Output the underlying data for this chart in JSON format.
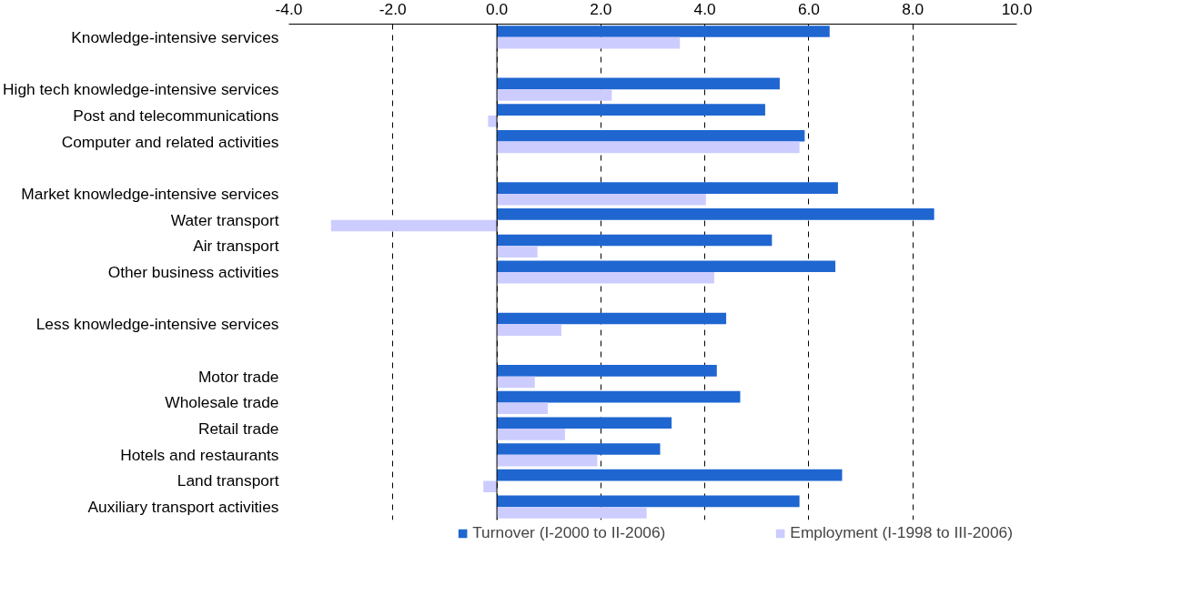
{
  "chart_data": {
    "type": "bar",
    "orientation": "horizontal",
    "categories": [
      "Knowledge-intensive services",
      null,
      "High tech knowledge-intensive services",
      "Post and telecommunications",
      "Computer and related activities",
      null,
      "Market knowledge-intensive services",
      "Water transport",
      "Air transport",
      "Other business activities",
      null,
      "Less knowledge-intensive services",
      null,
      "Motor trade",
      "Wholesale trade",
      "Retail trade",
      "Hotels and restaurants",
      "Land transport",
      "Auxiliary transport activities"
    ],
    "series": [
      {
        "name": "Turnover (I-2000 to II-2006)",
        "color": "#1f66d1",
        "values": [
          6.4,
          null,
          5.44,
          5.16,
          5.92,
          null,
          6.56,
          8.41,
          5.29,
          6.51,
          null,
          4.41,
          null,
          4.23,
          4.68,
          3.36,
          3.14,
          6.64,
          5.82
        ]
      },
      {
        "name": "Employment (I-1998 to III-2006)",
        "color": "#ccccff",
        "values": [
          3.52,
          null,
          2.21,
          -0.17,
          5.82,
          null,
          4.02,
          -3.19,
          0.78,
          4.18,
          null,
          1.24,
          null,
          0.73,
          0.98,
          1.31,
          1.93,
          -0.26,
          2.88
        ]
      }
    ],
    "xlim": [
      -4,
      10
    ],
    "xticks": [
      {
        "value": -4,
        "label": "-4.0"
      },
      {
        "value": -2,
        "label": "-2.0"
      },
      {
        "value": 0,
        "label": "0.0"
      },
      {
        "value": 2,
        "label": "2.0"
      },
      {
        "value": 4,
        "label": "4.0"
      },
      {
        "value": 6,
        "label": "6.0"
      },
      {
        "value": 8,
        "label": "8.0"
      },
      {
        "value": 10,
        "label": "10.0"
      }
    ],
    "grid": "x",
    "line_style": "dashed",
    "legend": "bottom"
  }
}
